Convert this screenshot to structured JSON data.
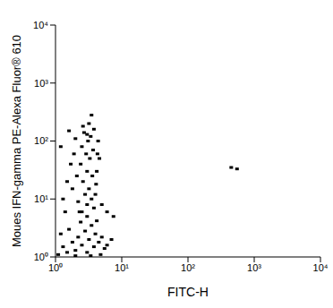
{
  "chart_data": {
    "type": "scatter",
    "x_label": "FITC-H",
    "y_label": "Moues IFN-gamma PE-Alexa Fluor® 610",
    "log": true,
    "grid": false,
    "color": "#000000",
    "marker": "square",
    "xlim": [
      1,
      10000
    ],
    "ylim": [
      1,
      10000
    ],
    "xticks": [
      {
        "value": 1,
        "label": "10⁰"
      },
      {
        "value": 10,
        "label": "10¹"
      },
      {
        "value": 100,
        "label": "10²"
      },
      {
        "value": 1000,
        "label": "10³"
      },
      {
        "value": 10000,
        "label": "10⁴"
      }
    ],
    "yticks": [
      {
        "value": 1,
        "label": "10⁰"
      },
      {
        "value": 10,
        "label": "10¹"
      },
      {
        "value": 100,
        "label": "10²"
      },
      {
        "value": 1000,
        "label": "10³"
      },
      {
        "value": 10000,
        "label": "10⁴"
      }
    ],
    "x": [
      1.1,
      1.3,
      1.5,
      1.8,
      2,
      2.2,
      2.5,
      2.8,
      3,
      3.2,
      3.5,
      3.8,
      4,
      4.5,
      5,
      5.5,
      1.2,
      1.6,
      2.4,
      3,
      4.2,
      6,
      7,
      2,
      3.4,
      4.8,
      2.5,
      3,
      3.5,
      2.8,
      3.2,
      2.6,
      3.6,
      3,
      2.4,
      3.3,
      2.9,
      3.7,
      2.5,
      3.1,
      3.4,
      2.7,
      3.2,
      3.5,
      2.2,
      4,
      4.2,
      2.1,
      1.9,
      4.3,
      1.8,
      4.4,
      2,
      3,
      1.7,
      4.1,
      3.8,
      2.3,
      1.5,
      1.6,
      4.6,
      5,
      6,
      7.5,
      2.6,
      3.8,
      1.2,
      1.3,
      1.4,
      450,
      550
    ],
    "values": [
      1.1,
      1.5,
      1.2,
      1.8,
      1.3,
      2.2,
      1.6,
      2.8,
      1.2,
      2,
      3.5,
      1.5,
      2.5,
      1.8,
      2.2,
      1.4,
      2.5,
      3,
      4,
      5,
      4.2,
      1.6,
      2,
      1.05,
      1.05,
      1.1,
      6,
      8,
      10,
      12,
      15,
      20,
      25,
      30,
      40,
      50,
      60,
      70,
      80,
      100,
      120,
      140,
      200,
      280,
      9,
      12,
      30,
      25,
      60,
      60,
      15,
      100,
      110,
      130,
      40,
      18,
      7,
      6,
      20,
      150,
      50,
      8,
      6,
      5,
      180,
      160,
      80,
      10,
      6,
      35,
      33
    ]
  }
}
